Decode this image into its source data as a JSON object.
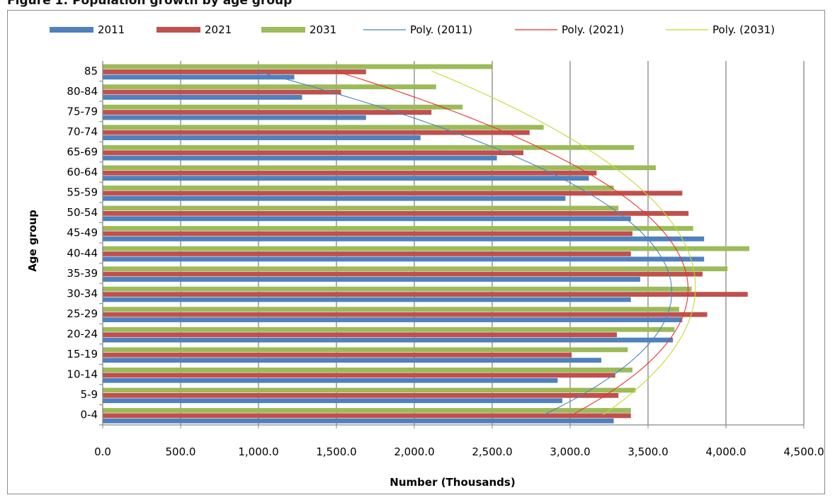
{
  "chart_data": {
    "type": "bar",
    "orientation": "horizontal",
    "title": "Figure 1: Population growth by age group",
    "xlabel": "Number (Thousands)",
    "ylabel": "Age group",
    "xlim": [
      0,
      4500
    ],
    "x_ticks": [
      "0.0",
      "500.0",
      "1,000.0",
      "1,500.0",
      "2,000.0",
      "2,500.0",
      "3,000.0",
      "3,500.0",
      "4,000.0",
      "4,500.0"
    ],
    "grid": "vertical major gridlines",
    "legend": "top",
    "categories": [
      "0-4",
      "5-9",
      "10-14",
      "15-19",
      "20-24",
      "25-29",
      "30-34",
      "35-39",
      "40-44",
      "45-49",
      "50-54",
      "55-59",
      "60-64",
      "65-69",
      "70-74",
      "75-79",
      "80-84",
      "85"
    ],
    "series": [
      {
        "name": "2011",
        "color": "#4f81bd",
        "values": [
          3280,
          2950,
          2920,
          3200,
          3660,
          3720,
          3390,
          3450,
          3860,
          3860,
          3390,
          2970,
          3120,
          2530,
          2040,
          1690,
          1280,
          1230
        ]
      },
      {
        "name": "2021",
        "color": "#c0504d",
        "values": [
          3390,
          3310,
          3290,
          3010,
          3300,
          3880,
          4140,
          3850,
          3390,
          3400,
          3760,
          3720,
          3170,
          2700,
          2740,
          2110,
          1530,
          1690
        ]
      },
      {
        "name": "2031",
        "color": "#9bbb59",
        "values": [
          3390,
          3420,
          3400,
          3370,
          3670,
          3700,
          3780,
          4010,
          4150,
          3790,
          3310,
          3280,
          3550,
          3410,
          2830,
          2310,
          2140,
          2500
        ]
      }
    ],
    "trendlines": [
      {
        "name": "Poly. (2011)",
        "color": "#4f81bd",
        "type": "polynomial",
        "series": "2011"
      },
      {
        "name": "Poly. (2021)",
        "color": "#e8322d",
        "type": "polynomial",
        "series": "2021"
      },
      {
        "name": "Poly. (2031)",
        "color": "#c4d82e",
        "type": "polynomial",
        "series": "2031"
      }
    ]
  }
}
